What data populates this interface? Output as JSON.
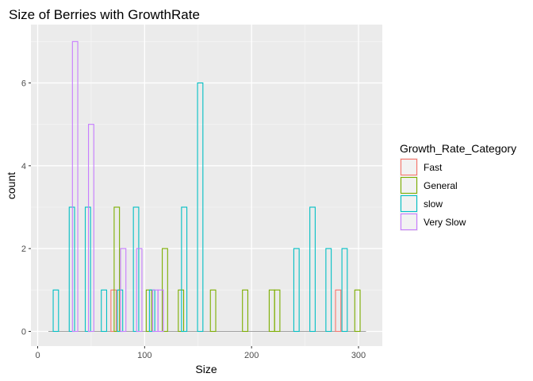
{
  "chart_data": {
    "type": "bar",
    "title": "Size of Berries with GrowthRate",
    "xlabel": "Size",
    "ylabel": "count",
    "xlim": [
      0,
      310
    ],
    "ylim": [
      0,
      7.2
    ],
    "xticks": [
      0,
      100,
      200,
      300
    ],
    "yticks": [
      0,
      2,
      4,
      6
    ],
    "grid": true,
    "legend_position": "right",
    "legend_title": "Growth_Rate_Category",
    "series": [
      {
        "name": "Fast",
        "color": "#F8766D",
        "bars": [
          {
            "x": 71,
            "count": 1
          },
          {
            "x": 281,
            "count": 1
          }
        ]
      },
      {
        "name": "General",
        "color": "#7CAE00",
        "bars": [
          {
            "x": 74,
            "count": 3
          },
          {
            "x": 104,
            "count": 1
          },
          {
            "x": 119,
            "count": 2
          },
          {
            "x": 134,
            "count": 1
          },
          {
            "x": 164,
            "count": 1
          },
          {
            "x": 194,
            "count": 1
          },
          {
            "x": 219,
            "count": 1
          },
          {
            "x": 224,
            "count": 1
          },
          {
            "x": 299,
            "count": 1
          }
        ]
      },
      {
        "name": "slow",
        "color": "#00BFC4",
        "bars": [
          {
            "x": 17,
            "count": 1
          },
          {
            "x": 32,
            "count": 3
          },
          {
            "x": 47,
            "count": 3
          },
          {
            "x": 62,
            "count": 1
          },
          {
            "x": 77,
            "count": 1
          },
          {
            "x": 92,
            "count": 3
          },
          {
            "x": 107,
            "count": 1
          },
          {
            "x": 137,
            "count": 3
          },
          {
            "x": 152,
            "count": 6
          },
          {
            "x": 242,
            "count": 2
          },
          {
            "x": 257,
            "count": 3
          },
          {
            "x": 272,
            "count": 2
          },
          {
            "x": 287,
            "count": 2
          }
        ]
      },
      {
        "name": "Very Slow",
        "color": "#C77CFF",
        "bars": [
          {
            "x": 35,
            "count": 7
          },
          {
            "x": 50,
            "count": 5
          },
          {
            "x": 80,
            "count": 2
          },
          {
            "x": 95,
            "count": 2
          },
          {
            "x": 110,
            "count": 1
          },
          {
            "x": 115,
            "count": 1
          }
        ]
      }
    ]
  }
}
